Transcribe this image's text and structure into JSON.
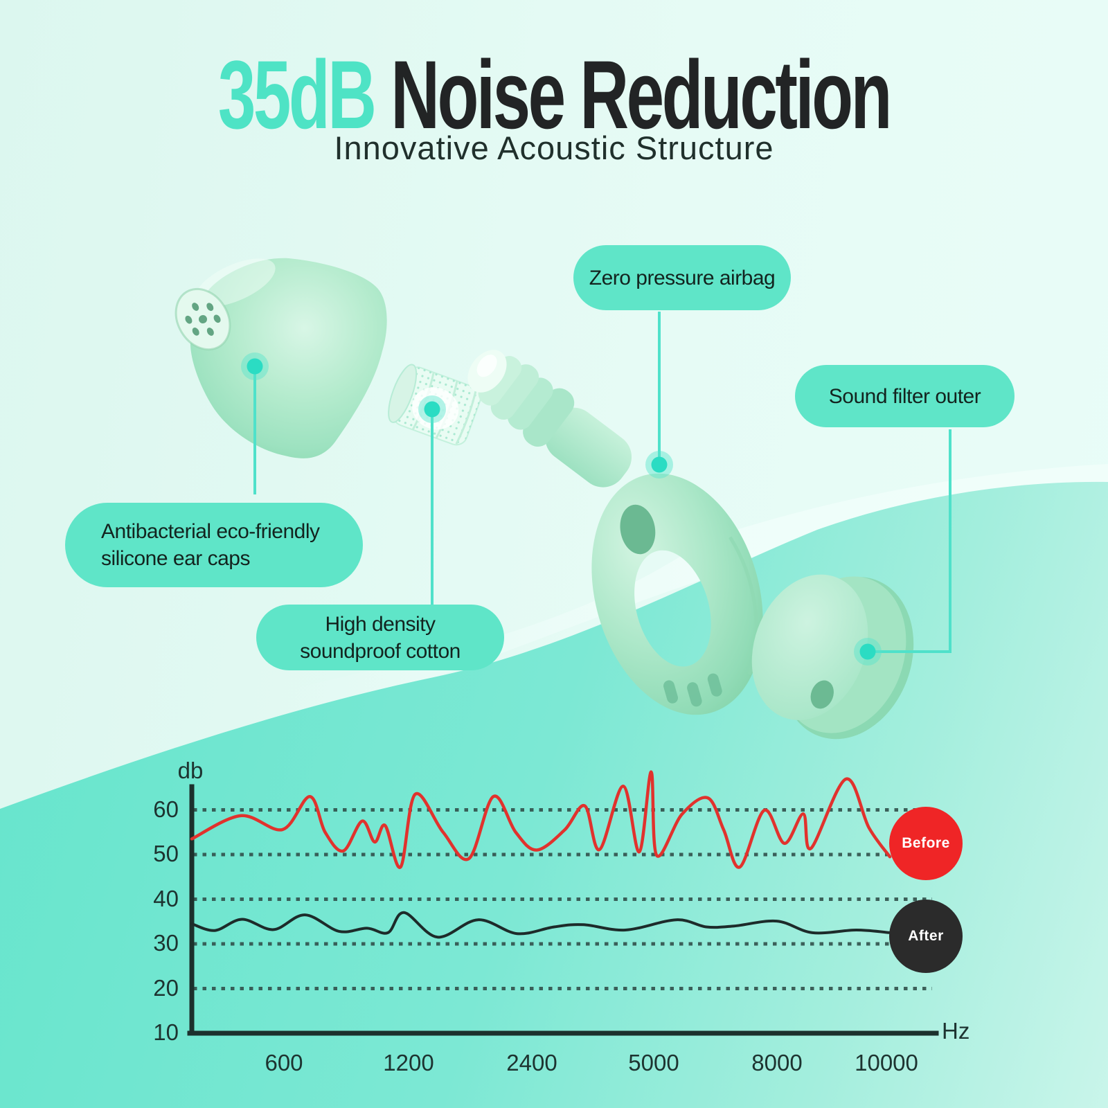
{
  "header": {
    "title_highlight": "35dB",
    "title_rest": " Noise Reduction",
    "subtitle": "Innovative Acoustic Structure"
  },
  "callouts": {
    "airbag": {
      "label": "Zero pressure airbag"
    },
    "sound_filter": {
      "label": "Sound filter outer"
    },
    "ear_caps": {
      "label": "Antibacterial eco-friendly\nsilicone ear caps"
    },
    "cotton": {
      "label": "High density\nsoundproof cotton"
    }
  },
  "colors": {
    "accent_teal": "#4ee3c5",
    "pill": "#5fe5c8",
    "wave": "#74e7d1",
    "connector": "#4fe1ca",
    "before_badge": "#ef2526",
    "after_badge": "#2b2b2b"
  },
  "chart_data": {
    "type": "line",
    "title": "",
    "ylabel": "db",
    "xlabel": "Hz",
    "ylim": [
      10,
      70
    ],
    "y_ticks": [
      60,
      50,
      40,
      30,
      20,
      10
    ],
    "x_ticks": [
      "600",
      "1200",
      "2400",
      "5000",
      "8000",
      "10000"
    ],
    "grid": "dotted horizontal gridlines",
    "legend_position": "right, round badges on chart",
    "series": [
      {
        "name": "Before",
        "color": "#e1322d",
        "badge_color": "#ef2526",
        "points": [
          [
            0.0,
            53.5
          ],
          [
            0.07,
            58.7
          ],
          [
            0.13,
            55.6
          ],
          [
            0.169,
            63.0
          ],
          [
            0.191,
            55.0
          ],
          [
            0.217,
            50.8
          ],
          [
            0.244,
            57.5
          ],
          [
            0.262,
            52.8
          ],
          [
            0.277,
            56.5
          ],
          [
            0.299,
            47.2
          ],
          [
            0.32,
            63.5
          ],
          [
            0.36,
            55.0
          ],
          [
            0.397,
            49.1
          ],
          [
            0.432,
            63.0
          ],
          [
            0.464,
            55.0
          ],
          [
            0.494,
            51.0
          ],
          [
            0.534,
            55.5
          ],
          [
            0.563,
            60.9
          ],
          [
            0.584,
            51.1
          ],
          [
            0.618,
            65.3
          ],
          [
            0.641,
            50.6
          ],
          [
            0.658,
            68.5
          ],
          [
            0.666,
            49.8
          ],
          [
            0.702,
            59.0
          ],
          [
            0.739,
            62.7
          ],
          [
            0.762,
            55.5
          ],
          [
            0.785,
            47.2
          ],
          [
            0.82,
            59.9
          ],
          [
            0.849,
            52.5
          ],
          [
            0.876,
            59.1
          ],
          [
            0.887,
            51.4
          ],
          [
            0.937,
            66.9
          ],
          [
            0.97,
            56.0
          ],
          [
            1.0,
            49.5
          ]
        ]
      },
      {
        "name": "After",
        "color": "#1d2b2a",
        "badge_color": "#2b2b2b",
        "points": [
          [
            0.0,
            34.5
          ],
          [
            0.033,
            33.0
          ],
          [
            0.072,
            35.5
          ],
          [
            0.117,
            33.2
          ],
          [
            0.162,
            36.5
          ],
          [
            0.211,
            32.8
          ],
          [
            0.251,
            33.5
          ],
          [
            0.281,
            32.5
          ],
          [
            0.304,
            37.0
          ],
          [
            0.352,
            31.5
          ],
          [
            0.41,
            35.4
          ],
          [
            0.466,
            32.3
          ],
          [
            0.519,
            33.8
          ],
          [
            0.561,
            34.3
          ],
          [
            0.621,
            33.1
          ],
          [
            0.694,
            35.4
          ],
          [
            0.737,
            33.8
          ],
          [
            0.777,
            34.0
          ],
          [
            0.838,
            35.1
          ],
          [
            0.889,
            32.5
          ],
          [
            0.952,
            33.1
          ],
          [
            1.0,
            32.5
          ]
        ]
      }
    ]
  }
}
